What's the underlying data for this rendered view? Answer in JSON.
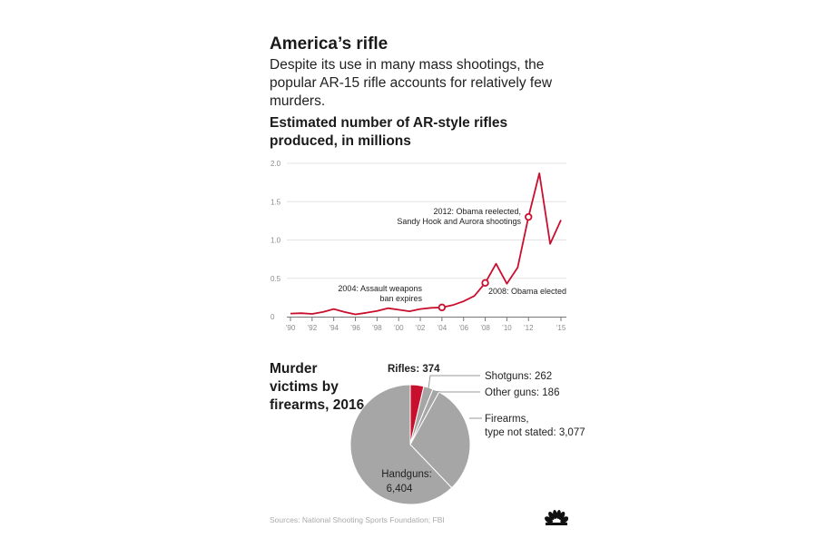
{
  "headline": "America’s rifle",
  "dek": "Despite its use in many mass shootings, the popular AR-15 rifle accounts for relatively few murders.",
  "source": "Sources: National Shooting Sports Foundation; FBI",
  "logo": "nbc-peacock-icon",
  "colors": {
    "accent": "#c8102e",
    "pie_gray": "#a6a6a6",
    "grid": "#e4e4e4",
    "axis": "#777777"
  },
  "chart_data": [
    {
      "type": "line",
      "title": "Estimated number of AR-style rifles produced, in millions",
      "xlabel": "",
      "ylabel": "",
      "x": [
        1990,
        1991,
        1992,
        1993,
        1994,
        1995,
        1996,
        1997,
        1998,
        1999,
        2000,
        2001,
        2002,
        2003,
        2004,
        2005,
        2006,
        2007,
        2008,
        2009,
        2010,
        2011,
        2012,
        2013,
        2014,
        2015
      ],
      "series": [
        {
          "name": "AR-style rifles produced",
          "values": [
            0.04,
            0.045,
            0.035,
            0.06,
            0.1,
            0.06,
            0.03,
            0.05,
            0.075,
            0.11,
            0.09,
            0.07,
            0.1,
            0.115,
            0.12,
            0.15,
            0.2,
            0.27,
            0.44,
            0.69,
            0.43,
            0.64,
            1.3,
            1.87,
            0.95,
            1.26
          ]
        }
      ],
      "xlim": [
        1990,
        2015
      ],
      "ylim": [
        0,
        2.0
      ],
      "y_ticks": [
        0,
        0.5,
        1.0,
        1.5,
        2.0
      ],
      "y_tick_labels": [
        "0",
        "0.5",
        "1.0",
        "1.5",
        "2.0"
      ],
      "x_ticks": [
        1990,
        1992,
        1994,
        1996,
        1998,
        2000,
        2002,
        2004,
        2006,
        2008,
        2010,
        2012,
        2015
      ],
      "x_tick_labels": [
        "’90",
        "’92",
        "’94",
        "’96",
        "’98",
        "’00",
        "’02",
        "’04",
        "’06",
        "’08",
        "’10",
        "’12",
        "’15"
      ],
      "grid": true,
      "annotations": [
        {
          "year": 2004,
          "value": 0.12,
          "lines": [
            "2004: Assault weapons",
            "ban expires"
          ]
        },
        {
          "year": 2008,
          "value": 0.44,
          "lines": [
            "2008: Obama elected"
          ]
        },
        {
          "year": 2012,
          "value": 1.3,
          "lines": [
            "2012: Obama reelected,",
            "Sandy Hook and Aurora shootings"
          ]
        }
      ]
    },
    {
      "type": "pie",
      "title": "Murder victims by firearms, 2016",
      "labels": [
        "Rifles",
        "Shotguns",
        "Other guns",
        "Firearms, type not stated",
        "Handguns"
      ],
      "values": [
        374,
        262,
        186,
        3077,
        6404
      ],
      "label_text": [
        "Rifles: 374",
        "Shotguns: 262",
        "Other guns: 186",
        "Firearms, type not stated: 3,077",
        "Handguns: 6,404"
      ],
      "highlight": "Rifles"
    }
  ]
}
